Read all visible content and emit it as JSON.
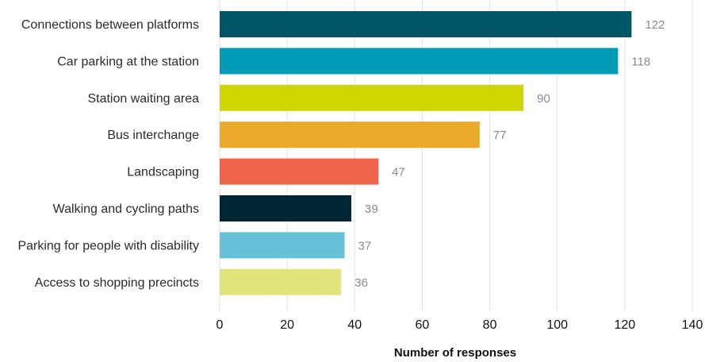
{
  "chart_data": {
    "type": "bar",
    "orientation": "horizontal",
    "categories": [
      "Connections between platforms",
      "Car parking at the station",
      "Station waiting area",
      "Bus interchange",
      "Landscaping",
      "Walking and cycling paths",
      "Parking for people with disability",
      "Access to shopping precincts"
    ],
    "values": [
      122,
      118,
      90,
      77,
      47,
      39,
      37,
      36
    ],
    "value_labels": [
      "122",
      "118",
      "90",
      "77",
      "47",
      "39",
      "37",
      "36"
    ],
    "colors": [
      "#005566",
      "#009bb6",
      "#cfd500",
      "#ebaa2b",
      "#ee654b",
      "#002533",
      "#66c2d6",
      "#e1e37d"
    ],
    "title": "",
    "xlabel": "Number of responses",
    "ylabel": "",
    "xlim": [
      0,
      140
    ],
    "xticks": [
      0,
      20,
      40,
      60,
      80,
      100,
      120,
      140
    ],
    "xtick_labels": [
      "0",
      "20",
      "40",
      "60",
      "80",
      "100",
      "120",
      "140"
    ],
    "grid": "vertical"
  }
}
